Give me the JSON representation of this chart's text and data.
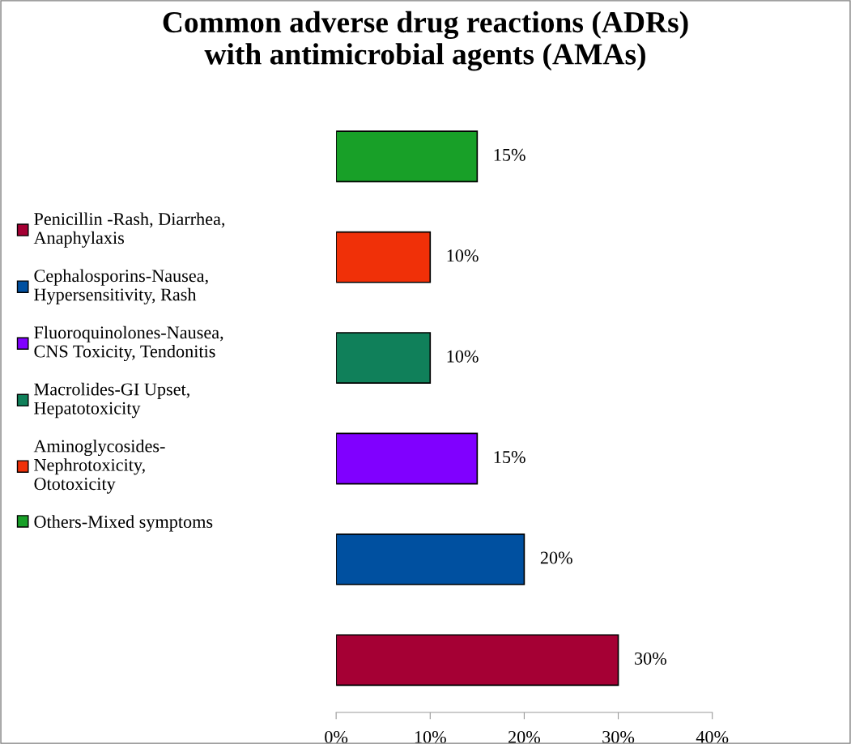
{
  "chart_data": {
    "type": "bar",
    "orientation": "horizontal",
    "stacked": true,
    "title": "Common adverse drug reactions (ADRs)\nwith antimicrobial agents (AMAs)",
    "categories": [
      null,
      null,
      null,
      null,
      null,
      null
    ],
    "series": [
      {
        "name": "Penicillin -Rash, Diarrhea,\nAnaphylaxis",
        "color": "#a50034",
        "values": [
          0,
          0,
          0,
          0,
          0,
          30
        ],
        "value_labels": [
          null,
          null,
          null,
          null,
          null,
          "30%"
        ]
      },
      {
        "name": "Cephalosporins-Nausea,\nHypersensitivity, Rash",
        "color": "#0050a0",
        "values": [
          0,
          0,
          0,
          0,
          20,
          0
        ],
        "value_labels": [
          null,
          null,
          null,
          null,
          "20%",
          null
        ]
      },
      {
        "name": "Fluoroquinolones-Nausea,\nCNS Toxicity, Tendonitis",
        "color": "#8000ff",
        "values": [
          0,
          0,
          0,
          15,
          0,
          0
        ],
        "value_labels": [
          null,
          null,
          null,
          "15%",
          null,
          null
        ]
      },
      {
        "name": "Macrolides-GI Upset,\nHepatotoxicity",
        "color": "#10805a",
        "values": [
          0,
          0,
          10,
          0,
          0,
          0
        ],
        "value_labels": [
          null,
          null,
          "10%",
          null,
          null,
          null
        ]
      },
      {
        "name": "Aminoglycosides-\nNephrotoxicity,\nOtotoxicity",
        "color": "#f03008",
        "values": [
          0,
          10,
          0,
          0,
          0,
          0
        ],
        "value_labels": [
          null,
          "10%",
          null,
          null,
          null,
          null
        ]
      },
      {
        "name": "Others-Mixed symptoms",
        "color": "#18a028",
        "values": [
          15,
          0,
          0,
          0,
          0,
          0
        ],
        "value_labels": [
          "15%",
          null,
          null,
          null,
          null,
          null
        ]
      }
    ],
    "xlim": [
      0,
      40
    ],
    "xticks": [
      {
        "value": 0,
        "label": "0%"
      },
      {
        "value": 10,
        "label": "10%"
      },
      {
        "value": 20,
        "label": "20%"
      },
      {
        "value": 30,
        "label": "30%"
      },
      {
        "value": 40,
        "label": "40%"
      }
    ],
    "grid": false,
    "legend": "left",
    "tick_labels": "x"
  }
}
